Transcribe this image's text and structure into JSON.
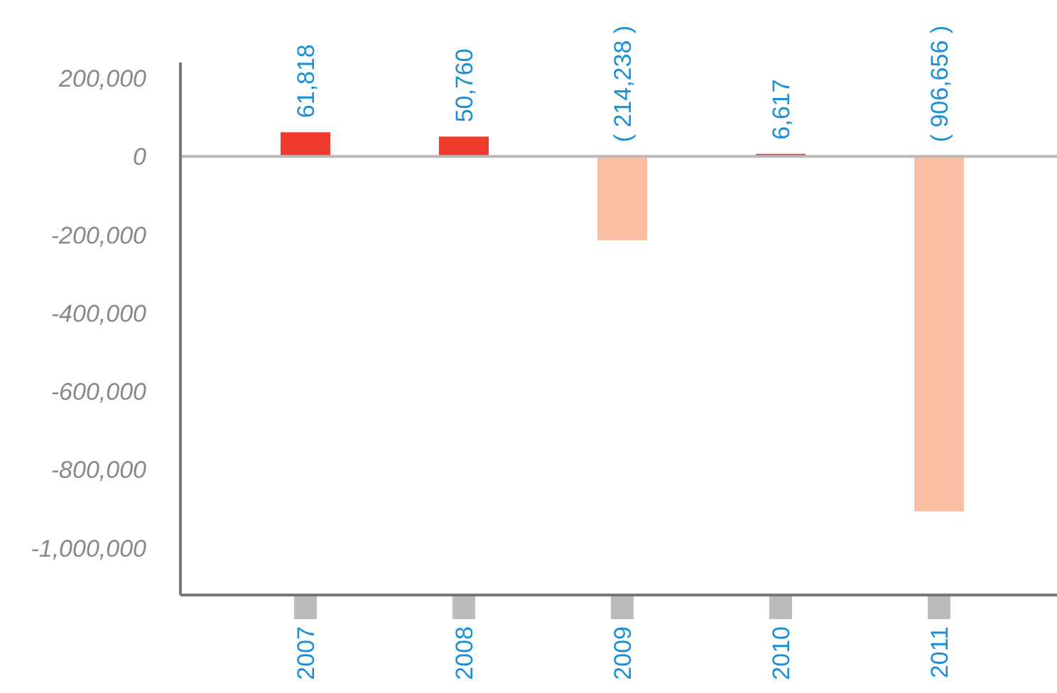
{
  "chart_data": {
    "type": "bar",
    "categories": [
      "2007",
      "2008",
      "2009",
      "2010",
      "2011"
    ],
    "values": [
      61818,
      50760,
      -214238,
      6617,
      -906656
    ],
    "colors": [
      "#ef3b2c",
      "#ef3b2c",
      "#fbbfa6",
      "#ef3b2c",
      "#fbbfa6"
    ],
    "value_labels": [
      "61,818",
      "50,760",
      "( 214,238 )",
      "6,617",
      "( 906,656 )"
    ],
    "ylim": [
      -1120000,
      240000
    ],
    "yticks": [
      {
        "value": 200000,
        "label": "200,000"
      },
      {
        "value": 0,
        "label": "0"
      },
      {
        "value": -200000,
        "label": "-200,000"
      },
      {
        "value": -400000,
        "label": "-400,000"
      },
      {
        "value": -600000,
        "label": "-600,000"
      },
      {
        "value": -800000,
        "label": "-800,000"
      },
      {
        "value": -1000000,
        "label": "-1,000,000"
      }
    ],
    "ref_lines": [
      {
        "axis": "y",
        "value": 0,
        "color": "#b8b8b8"
      }
    ],
    "grid": false
  }
}
